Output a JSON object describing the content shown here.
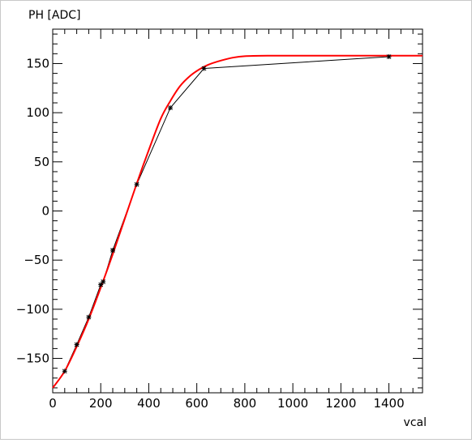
{
  "chart_data": {
    "type": "line",
    "title": "",
    "xlabel": "vcal",
    "ylabel": "PH [ADC]",
    "xlim": [
      0,
      1540
    ],
    "ylim": [
      -185,
      185
    ],
    "x_ticks": [
      "0",
      "200",
      "400",
      "600",
      "800",
      "1000",
      "1200",
      "1400"
    ],
    "y_ticks": [
      "−150",
      "−100",
      "−50",
      "0",
      "50",
      "100",
      "150"
    ],
    "x_tick_values": [
      0,
      200,
      400,
      600,
      800,
      1000,
      1200,
      1400
    ],
    "y_tick_values": [
      -150,
      -100,
      -50,
      0,
      50,
      100,
      150
    ],
    "grid": false,
    "legend": "none",
    "series": [
      {
        "kind": "data-points",
        "color": "#000000",
        "marker": "star",
        "points": [
          [
            50,
            -163
          ],
          [
            100,
            -136
          ],
          [
            150,
            -108
          ],
          [
            200,
            -75
          ],
          [
            210,
            -72
          ],
          [
            250,
            -40
          ],
          [
            350,
            27
          ],
          [
            490,
            105
          ],
          [
            630,
            145
          ],
          [
            1400,
            157
          ]
        ]
      },
      {
        "kind": "fit-curve",
        "color": "#ff0000",
        "points": [
          [
            0,
            -180
          ],
          [
            50,
            -163
          ],
          [
            100,
            -138
          ],
          [
            150,
            -110
          ],
          [
            200,
            -78
          ],
          [
            250,
            -44
          ],
          [
            300,
            -8
          ],
          [
            350,
            28
          ],
          [
            400,
            62
          ],
          [
            450,
            94
          ],
          [
            490,
            112
          ],
          [
            530,
            127
          ],
          [
            570,
            137
          ],
          [
            610,
            144
          ],
          [
            650,
            149
          ],
          [
            700,
            153
          ],
          [
            750,
            156
          ],
          [
            800,
            157.5
          ],
          [
            900,
            158
          ],
          [
            1000,
            158
          ],
          [
            1200,
            158
          ],
          [
            1400,
            158
          ],
          [
            1540,
            158
          ]
        ]
      }
    ]
  }
}
